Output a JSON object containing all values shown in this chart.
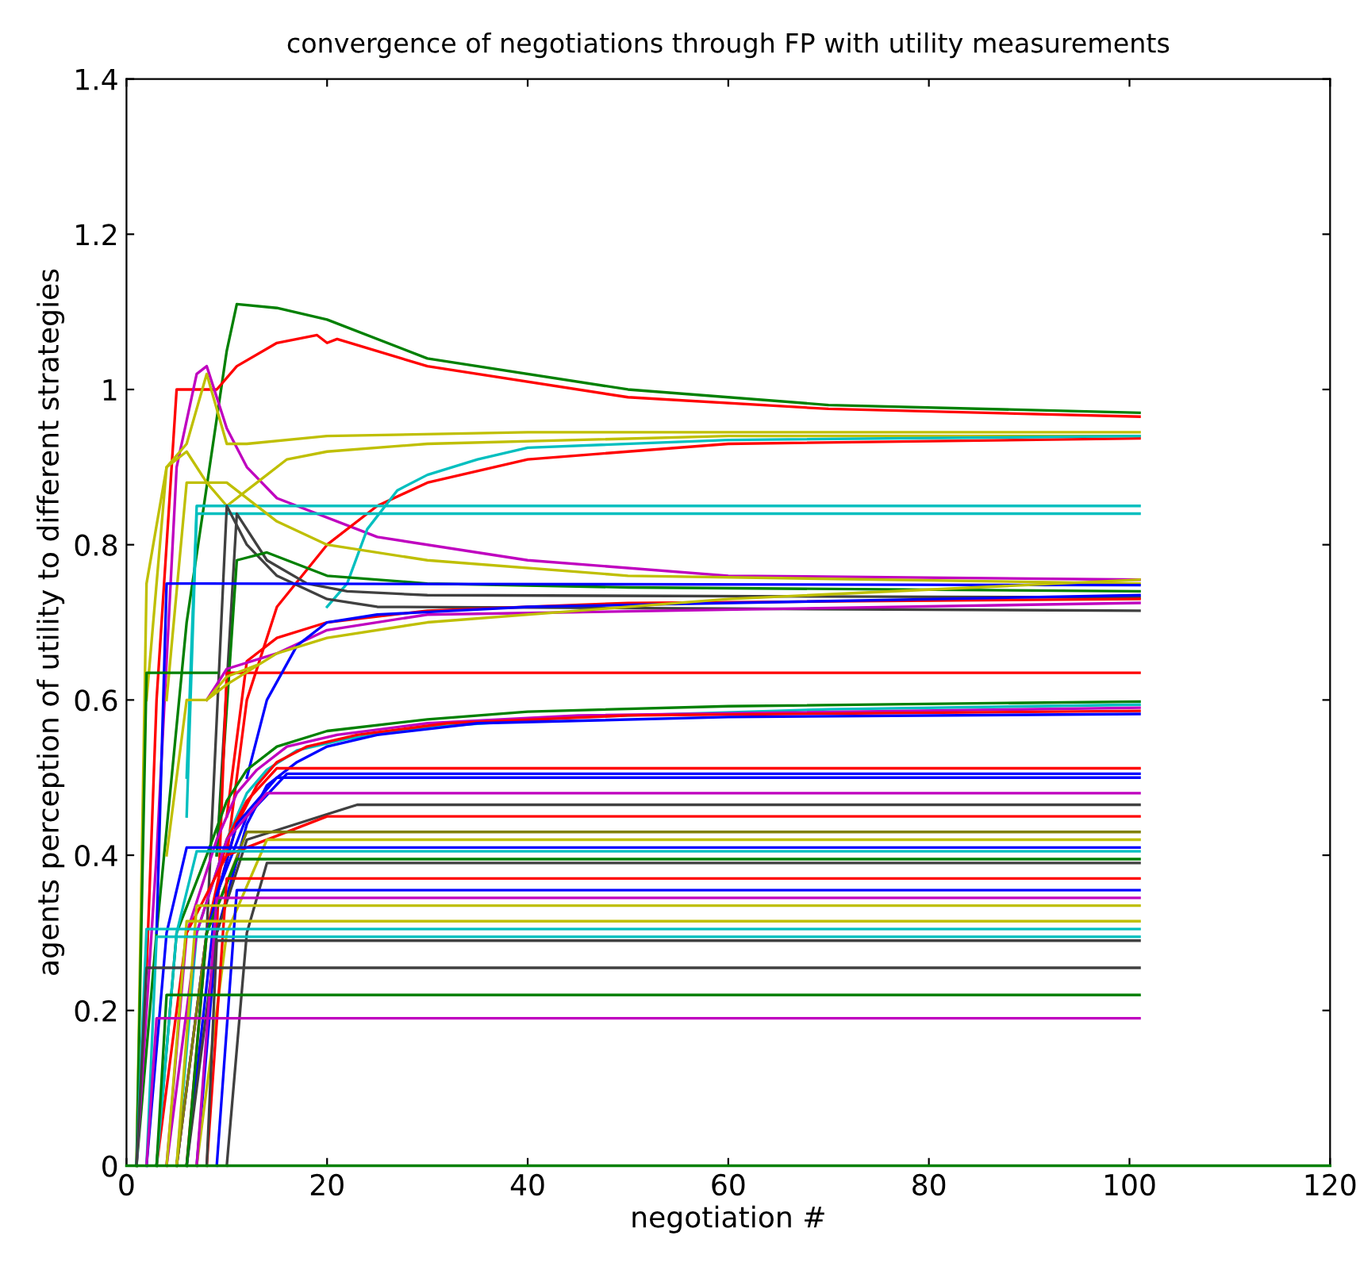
{
  "chart_data": {
    "type": "line",
    "title": "convergence of negotiations through FP with utility measurements",
    "xlabel": "negotiation #",
    "ylabel": "agents perception of utility to different strategies",
    "xlim": [
      0,
      120
    ],
    "xticks": [
      0,
      20,
      40,
      60,
      80,
      100,
      120
    ],
    "ylim": [
      0,
      1.4
    ],
    "yticks": [
      0,
      0.2,
      0.4,
      0.6,
      0.8,
      1,
      1.2,
      1.4
    ],
    "grid": false,
    "legend": false,
    "series": [
      {
        "color": "#008000",
        "x": [
          1,
          3,
          6,
          10,
          11,
          15,
          20,
          30,
          50,
          70,
          101
        ],
        "values": [
          0,
          0.3,
          0.7,
          1.05,
          1.11,
          1.105,
          1.09,
          1.04,
          1.0,
          0.98,
          0.97
        ]
      },
      {
        "color": "#ff0000",
        "x": [
          2,
          3,
          5,
          9,
          11,
          15,
          19,
          20,
          21,
          30,
          50,
          70,
          101
        ],
        "values": [
          0.25,
          0.6,
          1.0,
          1.0,
          1.03,
          1.06,
          1.07,
          1.06,
          1.065,
          1.03,
          0.99,
          0.975,
          0.965
        ]
      },
      {
        "color": "#bf00bf",
        "x": [
          1,
          3,
          5,
          7,
          8,
          10,
          12,
          15,
          25,
          40,
          60,
          101
        ],
        "values": [
          0,
          0.4,
          0.9,
          1.02,
          1.03,
          0.95,
          0.9,
          0.86,
          0.81,
          0.78,
          0.76,
          0.755
        ]
      },
      {
        "color": "#bfbf00",
        "x": [
          1,
          2,
          4,
          6,
          8,
          10,
          12,
          20,
          40,
          101
        ],
        "values": [
          0,
          0.75,
          0.9,
          0.93,
          1.02,
          0.93,
          0.93,
          0.94,
          0.945,
          0.945
        ]
      },
      {
        "color": "#bfbf00",
        "x": [
          2,
          4,
          6,
          8,
          10,
          13,
          16,
          20,
          30,
          60,
          101
        ],
        "values": [
          0.6,
          0.9,
          0.92,
          0.88,
          0.85,
          0.88,
          0.91,
          0.92,
          0.93,
          0.94,
          0.94
        ]
      },
      {
        "color": "#ff0000",
        "x": [
          10,
          12,
          15,
          20,
          25,
          30,
          40,
          60,
          101
        ],
        "values": [
          0.4,
          0.6,
          0.72,
          0.8,
          0.85,
          0.88,
          0.91,
          0.93,
          0.937
        ]
      },
      {
        "color": "#00bfbf",
        "x": [
          20,
          22,
          24,
          27,
          30,
          35,
          40,
          60,
          101
        ],
        "values": [
          0.72,
          0.75,
          0.82,
          0.87,
          0.89,
          0.91,
          0.925,
          0.935,
          0.94
        ]
      },
      {
        "color": "#00bfbf",
        "x": [
          6,
          7,
          101
        ],
        "values": [
          0.5,
          0.85,
          0.85
        ]
      },
      {
        "color": "#00bfbf",
        "x": [
          6,
          7,
          101
        ],
        "values": [
          0.45,
          0.84,
          0.84
        ]
      },
      {
        "color": "#bfbf00",
        "x": [
          4,
          6,
          10,
          15,
          20,
          30,
          50,
          101
        ],
        "values": [
          0.6,
          0.88,
          0.88,
          0.83,
          0.8,
          0.78,
          0.76,
          0.75
        ]
      },
      {
        "color": "#404040",
        "x": [
          8,
          10,
          12,
          15,
          20,
          25,
          101
        ],
        "values": [
          0.3,
          0.85,
          0.8,
          0.76,
          0.73,
          0.72,
          0.715
        ]
      },
      {
        "color": "#404040",
        "x": [
          9,
          11,
          14,
          18,
          22,
          30,
          101
        ],
        "values": [
          0.4,
          0.84,
          0.78,
          0.75,
          0.74,
          0.735,
          0.732
        ]
      },
      {
        "color": "#008000",
        "x": [
          9,
          11,
          14,
          20,
          30,
          50,
          101
        ],
        "values": [
          0.4,
          0.78,
          0.79,
          0.76,
          0.75,
          0.745,
          0.74
        ]
      },
      {
        "color": "#0000ff",
        "x": [
          3,
          4,
          101
        ],
        "values": [
          0.3,
          0.75,
          0.748
        ]
      },
      {
        "color": "#008000",
        "x": [
          1,
          2,
          9
        ],
        "values": [
          0,
          0.635,
          0.635
        ]
      },
      {
        "color": "#ff0000",
        "x": [
          9,
          10,
          101
        ],
        "values": [
          0.3,
          0.635,
          0.635
        ]
      },
      {
        "color": "#ff0000",
        "x": [
          10,
          12,
          15,
          20,
          30,
          50,
          101
        ],
        "values": [
          0.45,
          0.65,
          0.68,
          0.7,
          0.715,
          0.725,
          0.73
        ]
      },
      {
        "color": "#bf00bf",
        "x": [
          8,
          10,
          15,
          20,
          30,
          101
        ],
        "values": [
          0.6,
          0.64,
          0.66,
          0.69,
          0.71,
          0.725
        ]
      },
      {
        "color": "#0000ff",
        "x": [
          12,
          14,
          17,
          20,
          25,
          40,
          101
        ],
        "values": [
          0.5,
          0.6,
          0.67,
          0.7,
          0.71,
          0.72,
          0.735
        ]
      },
      {
        "color": "#bfbf00",
        "x": [
          8,
          10,
          15,
          20,
          30,
          60,
          101
        ],
        "values": [
          0.6,
          0.62,
          0.66,
          0.68,
          0.7,
          0.73,
          0.755
        ]
      },
      {
        "color": "#bfbf00",
        "x": [
          4,
          6,
          8,
          10,
          13
        ],
        "values": [
          0.4,
          0.6,
          0.6,
          0.63,
          0.645
        ]
      },
      {
        "color": "#008000",
        "x": [
          3,
          5,
          8,
          10,
          12,
          15,
          20,
          30,
          40,
          60,
          101
        ],
        "values": [
          0,
          0.3,
          0.4,
          0.47,
          0.51,
          0.54,
          0.56,
          0.575,
          0.585,
          0.592,
          0.598
        ]
      },
      {
        "color": "#00bfbf",
        "x": [
          5,
          7,
          10,
          12,
          14,
          17,
          22,
          30,
          45,
          70,
          101
        ],
        "values": [
          0,
          0.3,
          0.42,
          0.48,
          0.51,
          0.535,
          0.55,
          0.565,
          0.578,
          0.588,
          0.594
        ]
      },
      {
        "color": "#bf00bf",
        "x": [
          4,
          6,
          9,
          11,
          13,
          16,
          21,
          30,
          45,
          101
        ],
        "values": [
          0,
          0.3,
          0.42,
          0.48,
          0.51,
          0.54,
          0.555,
          0.57,
          0.58,
          0.59
        ]
      },
      {
        "color": "#ff0000",
        "x": [
          6,
          8,
          11,
          13,
          15,
          18,
          23,
          32,
          50,
          101
        ],
        "values": [
          0,
          0.3,
          0.44,
          0.49,
          0.52,
          0.54,
          0.555,
          0.57,
          0.58,
          0.586
        ]
      },
      {
        "color": "#0000ff",
        "x": [
          7,
          9,
          12,
          14,
          17,
          20,
          25,
          35,
          60,
          101
        ],
        "values": [
          0,
          0.3,
          0.44,
          0.49,
          0.52,
          0.54,
          0.555,
          0.57,
          0.578,
          0.582
        ]
      },
      {
        "color": "#ff0000",
        "x": [
          5,
          8,
          10,
          12,
          15,
          101
        ],
        "values": [
          0,
          0.3,
          0.42,
          0.47,
          0.512,
          0.512
        ]
      },
      {
        "color": "#0000ff",
        "x": [
          6,
          9,
          12,
          16,
          101
        ],
        "values": [
          0,
          0.35,
          0.45,
          0.505,
          0.505
        ]
      },
      {
        "color": "#0000ff",
        "x": [
          5,
          8,
          11,
          15,
          101
        ],
        "values": [
          0,
          0.3,
          0.44,
          0.5,
          0.5
        ]
      },
      {
        "color": "#bf00bf",
        "x": [
          4,
          7,
          10,
          14,
          101
        ],
        "values": [
          0,
          0.3,
          0.42,
          0.48,
          0.48
        ]
      },
      {
        "color": "#404040",
        "x": [
          6,
          9,
          12,
          23,
          101
        ],
        "values": [
          0,
          0.3,
          0.42,
          0.465,
          0.465
        ]
      },
      {
        "color": "#ff0000",
        "x": [
          3,
          6,
          10,
          20,
          101
        ],
        "values": [
          0,
          0.3,
          0.4,
          0.45,
          0.45
        ]
      },
      {
        "color": "#808000",
        "x": [
          5,
          8,
          12,
          101
        ],
        "values": [
          0,
          0.3,
          0.43,
          0.43
        ]
      },
      {
        "color": "#bfbf00",
        "x": [
          7,
          10,
          14,
          101
        ],
        "values": [
          0,
          0.3,
          0.42,
          0.42
        ]
      },
      {
        "color": "#0000ff",
        "x": [
          2,
          4,
          6,
          101
        ],
        "values": [
          0,
          0.3,
          0.41,
          0.41
        ]
      },
      {
        "color": "#00bfbf",
        "x": [
          3,
          5,
          7,
          101
        ],
        "values": [
          0,
          0.3,
          0.405,
          0.405
        ]
      },
      {
        "color": "#008000",
        "x": [
          6,
          8,
          11,
          101
        ],
        "values": [
          0,
          0.3,
          0.395,
          0.395
        ]
      },
      {
        "color": "#404040",
        "x": [
          10,
          12,
          14,
          101
        ],
        "values": [
          0,
          0.3,
          0.39,
          0.39
        ]
      },
      {
        "color": "#ff0000",
        "x": [
          8,
          10,
          101
        ],
        "values": [
          0,
          0.37,
          0.37
        ]
      },
      {
        "color": "#0000ff",
        "x": [
          9,
          11,
          101
        ],
        "values": [
          0,
          0.355,
          0.355
        ]
      },
      {
        "color": "#bf00bf",
        "x": [
          7,
          9,
          101
        ],
        "values": [
          0,
          0.345,
          0.345
        ]
      },
      {
        "color": "#bfbf00",
        "x": [
          5,
          7,
          101
        ],
        "values": [
          0,
          0.335,
          0.335
        ]
      },
      {
        "color": "#bfbf00",
        "x": [
          4,
          6,
          101
        ],
        "values": [
          0,
          0.315,
          0.315
        ]
      },
      {
        "color": "#00bfbf",
        "x": [
          1,
          2,
          101
        ],
        "values": [
          0,
          0.305,
          0.305
        ]
      },
      {
        "color": "#00bfbf",
        "x": [
          2,
          3,
          101
        ],
        "values": [
          0,
          0.295,
          0.295
        ]
      },
      {
        "color": "#404040",
        "x": [
          8,
          9,
          101
        ],
        "values": [
          0,
          0.29,
          0.29
        ]
      },
      {
        "color": "#404040",
        "x": [
          1,
          2,
          101
        ],
        "values": [
          0,
          0.255,
          0.255
        ]
      },
      {
        "color": "#008000",
        "x": [
          3,
          4,
          101
        ],
        "values": [
          0,
          0.22,
          0.22
        ]
      },
      {
        "color": "#bf00bf",
        "x": [
          2,
          3,
          101
        ],
        "values": [
          0,
          0.19,
          0.19
        ]
      },
      {
        "color": "#008000",
        "x": [
          0,
          120
        ],
        "values": [
          0,
          0
        ]
      }
    ]
  }
}
